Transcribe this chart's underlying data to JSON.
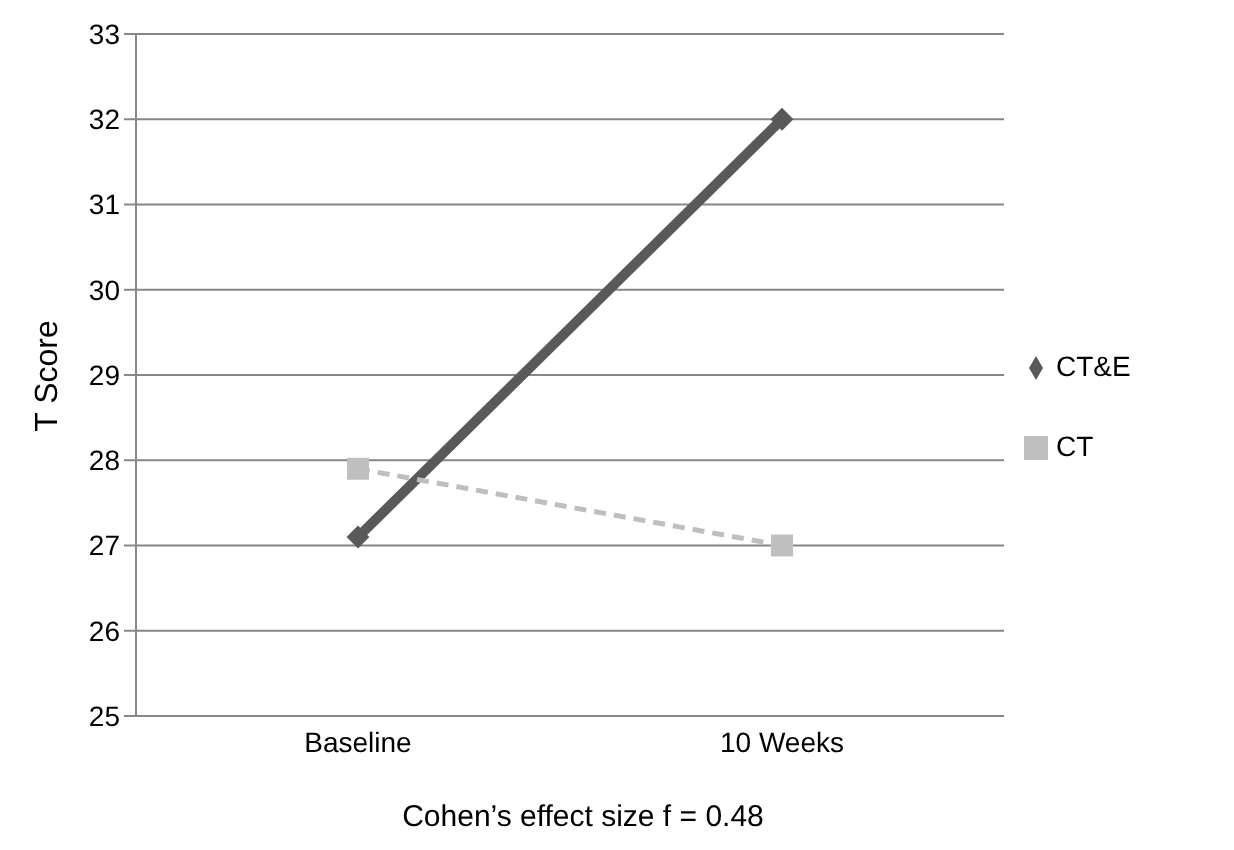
{
  "chart_data": {
    "type": "line",
    "ylabel": "T Score",
    "categories": [
      "Baseline",
      "10 Weeks"
    ],
    "series": [
      {
        "name": "CT&E",
        "color": "#595959",
        "values": [
          27.1,
          32.0
        ],
        "marker": "diamond",
        "line_style": "solid"
      },
      {
        "name": "CT",
        "color": "#bfbfbf",
        "values": [
          27.9,
          27.0
        ],
        "marker": "square",
        "line_style": "dashed"
      }
    ],
    "ylim": [
      25,
      33
    ],
    "yticks": [
      25,
      26,
      27,
      28,
      29,
      30,
      31,
      32,
      33
    ],
    "grid": "y",
    "legend": "right",
    "annotations": [
      "Cohen’s effect size f = 0.48"
    ]
  }
}
